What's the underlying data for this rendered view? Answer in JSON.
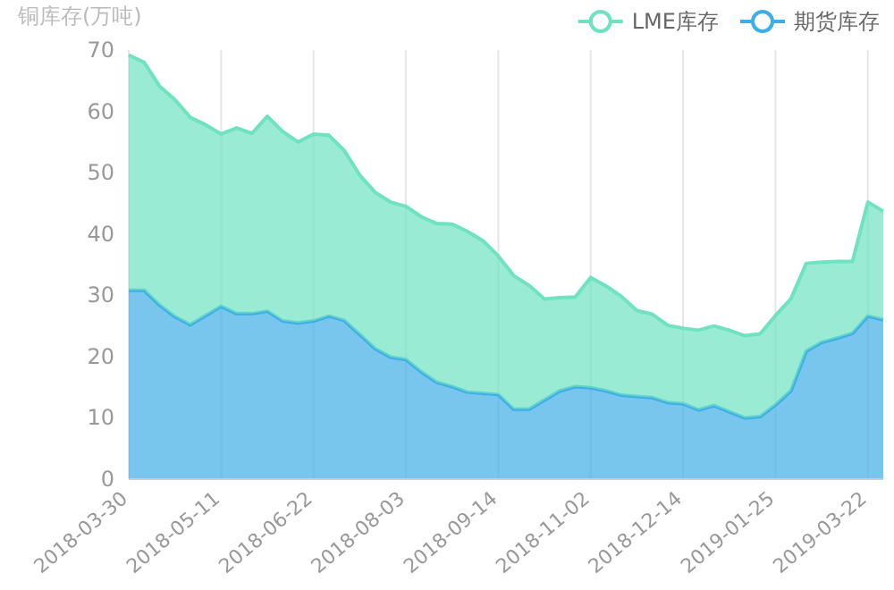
{
  "chart_data": {
    "type": "area",
    "stacked": true,
    "ylabel": "铜库存(万吨)",
    "grid": "x",
    "legend": "top right",
    "marker": "none",
    "categories": [
      "2018-03-30",
      null,
      null,
      null,
      null,
      null,
      "2018-05-11",
      null,
      null,
      null,
      null,
      null,
      "2018-06-22",
      null,
      null,
      null,
      null,
      null,
      "2018-08-03",
      null,
      null,
      null,
      null,
      null,
      "2018-09-14",
      null,
      null,
      null,
      null,
      null,
      "2018-11-02",
      null,
      null,
      null,
      null,
      null,
      "2018-12-14",
      null,
      null,
      null,
      null,
      null,
      "2019-01-25",
      null,
      null,
      null,
      null,
      null,
      "2019-03-22",
      null
    ],
    "ylim": [
      0,
      70
    ],
    "yticks": [
      0,
      10,
      20,
      30,
      40,
      50,
      60,
      70
    ],
    "series": [
      {
        "name": "期货库存",
        "color": "#3eaee6",
        "values": [
          30.8,
          30.8,
          28.4,
          26.5,
          25.2,
          26.7,
          28.2,
          27.0,
          27.0,
          27.4,
          25.8,
          25.5,
          25.8,
          26.6,
          25.9,
          23.6,
          21.3,
          19.9,
          19.5,
          17.5,
          15.8,
          15.1,
          14.2,
          14.0,
          13.8,
          11.4,
          11.4,
          12.9,
          14.4,
          15.1,
          14.9,
          14.4,
          13.7,
          13.5,
          13.3,
          12.5,
          12.3,
          11.3,
          12.0,
          11.0,
          10.0,
          10.2,
          12.1,
          14.4,
          20.9,
          22.3,
          23.0,
          23.8,
          26.6,
          26.0
        ]
      },
      {
        "name": "LME库存",
        "color": "#6fe2c2",
        "values": [
          38.4,
          37.2,
          35.7,
          35.4,
          33.8,
          31.1,
          28.1,
          30.3,
          29.4,
          31.8,
          30.9,
          29.5,
          30.5,
          29.5,
          27.7,
          26.0,
          25.5,
          25.3,
          25.0,
          25.3,
          25.9,
          26.5,
          26.2,
          24.9,
          22.6,
          21.8,
          20.2,
          16.5,
          15.2,
          14.6,
          18.0,
          17.1,
          16.1,
          14.0,
          13.6,
          12.6,
          12.3,
          13.0,
          13.0,
          13.3,
          13.4,
          13.5,
          14.6,
          15.0,
          14.3,
          13.1,
          12.5,
          11.7,
          18.6,
          17.7
        ]
      }
    ]
  }
}
